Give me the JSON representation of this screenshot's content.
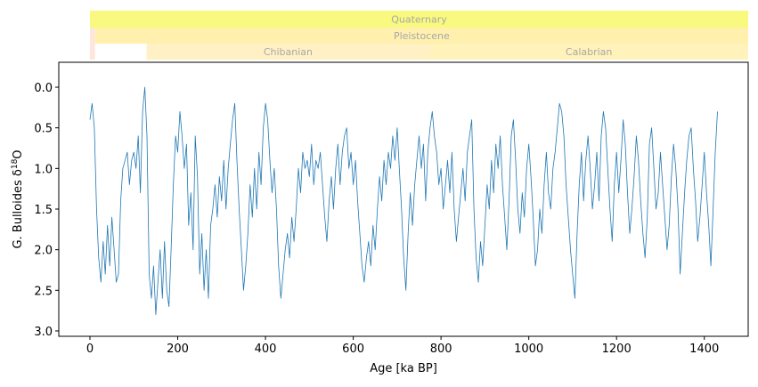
{
  "chart_data": {
    "type": "line",
    "xlabel": "Age [ka BP]",
    "ylabel": "G. Bulloides δ",
    "ylabel_sup": "18",
    "ylabel_suffix": "O",
    "xlim": [
      -71,
      1500
    ],
    "ylim": [
      3.066,
      -0.307
    ],
    "y_inverted": true,
    "grid": false,
    "xticks": [
      0,
      200,
      400,
      600,
      800,
      1000,
      1200,
      1400
    ],
    "xtick_labels": [
      "0",
      "200",
      "400",
      "600",
      "800",
      "1000",
      "1200",
      "1400"
    ],
    "yticks": [
      0.0,
      0.5,
      1.0,
      1.5,
      2.0,
      2.5,
      3.0
    ],
    "ytick_labels": [
      "0.0",
      "0.5",
      "1.0",
      "1.5",
      "2.0",
      "2.5",
      "3.0"
    ],
    "line_color": "#1f77b4",
    "timescale": [
      {
        "level": "period",
        "items": [
          {
            "name": "Quaternary",
            "start": 0,
            "end": 1500,
            "color": "#f9f97f"
          }
        ]
      },
      {
        "level": "epoch",
        "items": [
          {
            "name": "",
            "start": 0,
            "end": 11.7,
            "color": "#fee6d8"
          },
          {
            "name": "Pleistocene",
            "start": 11.7,
            "end": 1500,
            "color": "#fff0ae"
          }
        ]
      },
      {
        "level": "age",
        "items": [
          {
            "name": "",
            "start": 0,
            "end": 11.7,
            "color": "#fde7dd"
          },
          {
            "name": "",
            "start": 11.7,
            "end": 129,
            "color": "#ffffff"
          },
          {
            "name": "Chibanian",
            "start": 129,
            "end": 774,
            "color": "#fff1c4"
          },
          {
            "name": "Calabrian",
            "start": 774,
            "end": 1500,
            "color": "#fff2ba"
          }
        ]
      }
    ],
    "x": [
      0,
      5,
      10,
      15,
      20,
      25,
      30,
      35,
      40,
      45,
      50,
      55,
      60,
      65,
      70,
      75,
      80,
      85,
      90,
      95,
      100,
      105,
      110,
      115,
      120,
      125,
      130,
      135,
      140,
      145,
      150,
      155,
      160,
      165,
      170,
      175,
      180,
      185,
      190,
      195,
      200,
      205,
      210,
      215,
      220,
      225,
      230,
      235,
      240,
      245,
      250,
      255,
      260,
      265,
      270,
      275,
      280,
      285,
      290,
      295,
      300,
      305,
      310,
      315,
      320,
      325,
      330,
      335,
      340,
      345,
      350,
      355,
      360,
      365,
      370,
      375,
      380,
      385,
      390,
      395,
      400,
      405,
      410,
      415,
      420,
      425,
      430,
      435,
      440,
      445,
      450,
      455,
      460,
      465,
      470,
      475,
      480,
      485,
      490,
      495,
      500,
      505,
      510,
      515,
      520,
      525,
      530,
      535,
      540,
      545,
      550,
      555,
      560,
      565,
      570,
      575,
      580,
      585,
      590,
      595,
      600,
      605,
      610,
      615,
      620,
      625,
      630,
      635,
      640,
      645,
      650,
      655,
      660,
      665,
      670,
      675,
      680,
      685,
      690,
      695,
      700,
      705,
      710,
      715,
      720,
      725,
      730,
      735,
      740,
      745,
      750,
      755,
      760,
      765,
      770,
      775,
      780,
      785,
      790,
      795,
      800,
      805,
      810,
      815,
      820,
      825,
      830,
      835,
      840,
      845,
      850,
      855,
      860,
      865,
      870,
      875,
      880,
      885,
      890,
      895,
      900,
      905,
      910,
      915,
      920,
      925,
      930,
      935,
      940,
      945,
      950,
      955,
      960,
      965,
      970,
      975,
      980,
      985,
      990,
      995,
      1000,
      1005,
      1010,
      1015,
      1020,
      1025,
      1030,
      1035,
      1040,
      1045,
      1050,
      1055,
      1060,
      1065,
      1070,
      1075,
      1080,
      1085,
      1090,
      1095,
      1100,
      1105,
      1110,
      1115,
      1120,
      1125,
      1130,
      1135,
      1140,
      1145,
      1150,
      1155,
      1160,
      1165,
      1170,
      1175,
      1180,
      1185,
      1190,
      1195,
      1200,
      1205,
      1210,
      1215,
      1220,
      1225,
      1230,
      1235,
      1240,
      1245,
      1250,
      1255,
      1260,
      1265,
      1270,
      1275,
      1280,
      1285,
      1290,
      1295,
      1300,
      1305,
      1310,
      1315,
      1320,
      1325,
      1330,
      1335,
      1340,
      1345,
      1350,
      1355,
      1360,
      1365,
      1370,
      1375,
      1380,
      1385,
      1390,
      1395,
      1400,
      1405,
      1410,
      1415,
      1420,
      1425,
      1430
    ],
    "y": [
      0.4,
      0.2,
      0.5,
      1.5,
      2.1,
      2.4,
      1.9,
      2.3,
      1.7,
      2.2,
      1.6,
      2.0,
      2.4,
      2.3,
      1.4,
      1.0,
      0.9,
      0.8,
      1.2,
      0.9,
      0.8,
      1.0,
      0.6,
      1.3,
      0.3,
      0.0,
      0.6,
      2.3,
      2.6,
      2.2,
      2.8,
      2.4,
      2.0,
      2.6,
      1.9,
      2.5,
      2.7,
      2.0,
      1.2,
      0.6,
      0.8,
      0.3,
      0.6,
      1.0,
      0.7,
      1.7,
      1.3,
      2.0,
      0.6,
      1.1,
      2.3,
      1.8,
      2.5,
      2.0,
      2.6,
      1.7,
      1.5,
      1.2,
      1.6,
      1.1,
      1.4,
      0.9,
      1.5,
      1.0,
      0.7,
      0.4,
      0.2,
      0.9,
      1.5,
      2.0,
      2.5,
      2.2,
      1.8,
      1.2,
      1.6,
      1.0,
      1.5,
      0.8,
      1.2,
      0.5,
      0.2,
      0.4,
      0.9,
      1.3,
      1.0,
      1.5,
      2.2,
      2.6,
      2.3,
      2.0,
      1.8,
      2.1,
      1.6,
      1.9,
      1.5,
      1.0,
      1.3,
      0.8,
      1.0,
      0.9,
      1.1,
      0.7,
      1.2,
      0.9,
      1.0,
      0.8,
      1.2,
      1.6,
      1.9,
      1.4,
      1.1,
      1.5,
      1.0,
      0.7,
      1.2,
      0.8,
      0.6,
      0.5,
      1.0,
      0.8,
      1.2,
      0.9,
      1.4,
      1.8,
      2.2,
      2.4,
      2.1,
      1.9,
      2.2,
      1.7,
      2.0,
      1.5,
      1.1,
      1.4,
      0.9,
      1.2,
      0.8,
      1.0,
      0.6,
      0.9,
      0.5,
      1.0,
      1.5,
      2.1,
      2.5,
      1.8,
      1.3,
      1.7,
      1.2,
      0.9,
      0.6,
      1.0,
      0.7,
      1.4,
      0.8,
      0.5,
      0.3,
      0.6,
      0.8,
      1.2,
      1.0,
      1.5,
      1.2,
      0.9,
      1.3,
      0.8,
      1.5,
      1.9,
      1.6,
      1.3,
      1.0,
      1.4,
      0.8,
      0.6,
      0.4,
      1.5,
      2.1,
      2.4,
      1.9,
      2.2,
      1.7,
      1.2,
      1.5,
      0.9,
      1.3,
      0.7,
      1.0,
      0.6,
      1.2,
      1.6,
      2.0,
      1.4,
      0.6,
      0.4,
      0.9,
      1.5,
      1.8,
      1.3,
      1.6,
      1.0,
      0.7,
      1.1,
      1.6,
      2.2,
      2.0,
      1.5,
      1.8,
      1.2,
      0.8,
      1.3,
      1.5,
      1.0,
      0.8,
      0.5,
      0.2,
      0.3,
      0.6,
      1.2,
      1.6,
      2.0,
      2.3,
      2.6,
      1.8,
      1.2,
      0.8,
      1.4,
      0.9,
      0.6,
      1.0,
      1.5,
      1.2,
      0.8,
      1.4,
      0.6,
      0.3,
      0.5,
      1.0,
      1.5,
      1.9,
      1.2,
      0.8,
      1.3,
      0.9,
      0.4,
      0.7,
      1.3,
      1.8,
      1.5,
      1.1,
      0.6,
      0.9,
      1.4,
      1.8,
      2.1,
      1.6,
      0.7,
      0.5,
      1.0,
      1.5,
      1.3,
      0.8,
      1.2,
      1.6,
      2.0,
      1.7,
      1.1,
      0.7,
      1.0,
      1.5,
      2.3,
      1.8,
      1.3,
      0.9,
      0.6,
      0.5,
      1.0,
      1.4,
      1.9,
      1.6,
      1.2,
      0.8,
      1.3,
      1.7,
      2.2,
      1.5,
      0.8,
      0.3
    ]
  }
}
